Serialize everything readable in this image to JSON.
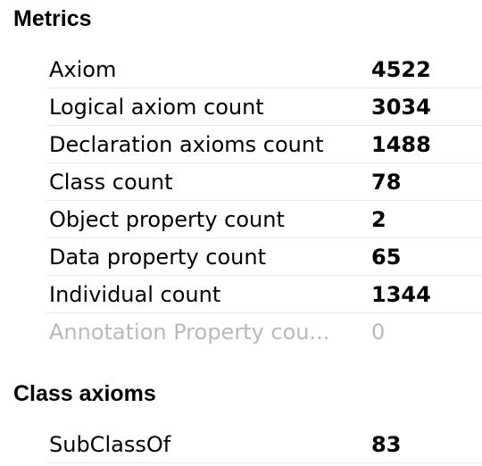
{
  "sections": {
    "metrics": {
      "title": "Metrics",
      "rows": [
        {
          "label": "Axiom",
          "value": "4522"
        },
        {
          "label": "Logical axiom count",
          "value": "3034"
        },
        {
          "label": "Declaration axioms count",
          "value": "1488"
        },
        {
          "label": "Class count",
          "value": "78"
        },
        {
          "label": "Object property count",
          "value": "2"
        },
        {
          "label": "Data property count",
          "value": "65"
        },
        {
          "label": "Individual count",
          "value": "1344"
        },
        {
          "label": "Annotation Property cou...",
          "value": "0"
        }
      ]
    },
    "class_axioms": {
      "title": "Class axioms",
      "rows": [
        {
          "label": "SubClassOf",
          "value": "83"
        }
      ]
    }
  },
  "colors": {
    "text": "#000000",
    "disabled_text": "#b9b9b9",
    "row_separator": "#e9e9e9",
    "background": "#ffffff"
  }
}
